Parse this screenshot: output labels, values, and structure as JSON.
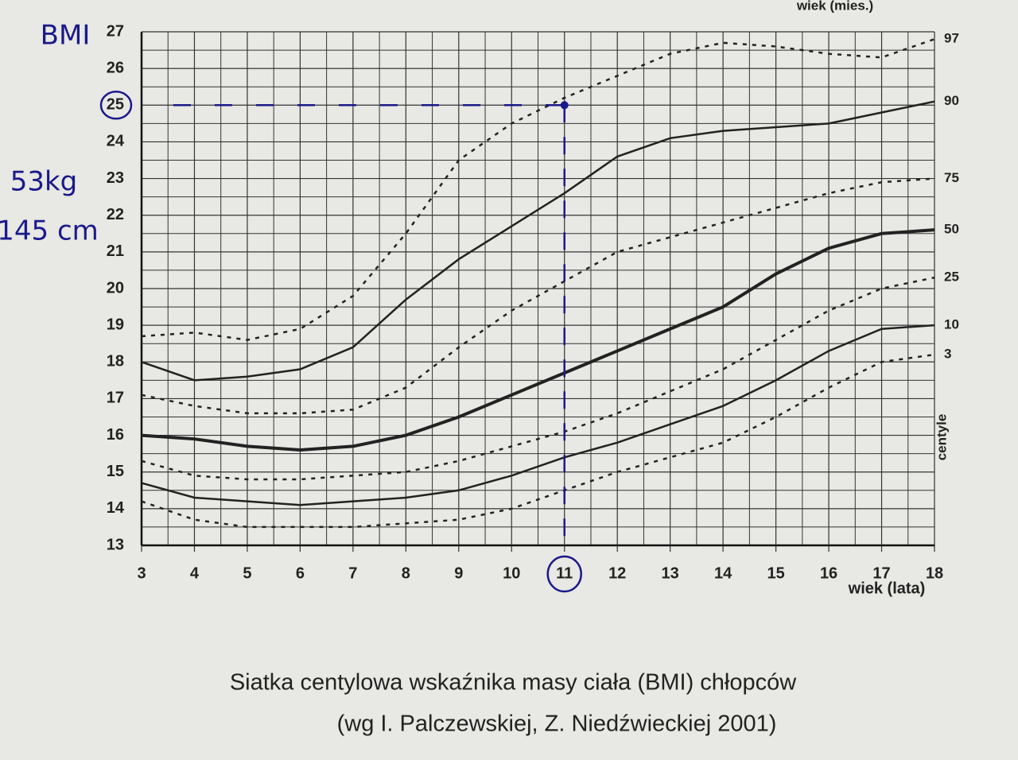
{
  "chart_data": {
    "type": "line",
    "title": "Siatka centylowa wskaźnika masy ciała (BMI) chłopców",
    "subtitle": "(wg I. Palczewskiej, Z. Niedźwieckiej 2001)",
    "xlabel": "wiek (lata)",
    "x2label": "wiek (mies.)",
    "legend_title": "centyle",
    "annotations": [
      "BMI",
      "53kg",
      "145 cm"
    ],
    "marker": {
      "x": 11,
      "y": 25,
      "color": "#1a1a8a"
    },
    "x": [
      3,
      4,
      5,
      6,
      7,
      8,
      9,
      10,
      11,
      12,
      13,
      14,
      15,
      16,
      17,
      18
    ],
    "xlim": [
      3,
      18
    ],
    "xticks": [
      3,
      4,
      5,
      6,
      7,
      8,
      9,
      10,
      11,
      12,
      13,
      14,
      15,
      16,
      17,
      18
    ],
    "ylim": [
      13,
      27
    ],
    "yticks": [
      13,
      14,
      15,
      16,
      17,
      18,
      19,
      20,
      21,
      22,
      23,
      24,
      25,
      26,
      27
    ],
    "grid": true,
    "minor_grid": true,
    "series": [
      {
        "name": "97",
        "color": "#222",
        "style": "dotted",
        "values": [
          18.7,
          18.8,
          18.6,
          18.9,
          19.8,
          21.5,
          23.5,
          24.5,
          25.2,
          25.8,
          26.4,
          26.7,
          26.6,
          26.4,
          26.3,
          26.8
        ]
      },
      {
        "name": "90",
        "color": "#222",
        "style": "solid",
        "values": [
          18.0,
          17.5,
          17.6,
          17.8,
          18.4,
          19.7,
          20.8,
          21.7,
          22.6,
          23.6,
          24.1,
          24.3,
          24.4,
          24.5,
          24.8,
          25.1
        ]
      },
      {
        "name": "75",
        "color": "#222",
        "style": "dotted",
        "values": [
          17.1,
          16.8,
          16.6,
          16.6,
          16.7,
          17.3,
          18.4,
          19.4,
          20.2,
          21.0,
          21.4,
          21.8,
          22.2,
          22.6,
          22.9,
          23.0
        ]
      },
      {
        "name": "50",
        "color": "#222",
        "style": "bold",
        "values": [
          16.0,
          15.9,
          15.7,
          15.6,
          15.7,
          16.0,
          16.5,
          17.1,
          17.7,
          18.3,
          18.9,
          19.5,
          20.4,
          21.1,
          21.5,
          21.6
        ]
      },
      {
        "name": "25",
        "color": "#222",
        "style": "dotted",
        "values": [
          15.3,
          14.9,
          14.8,
          14.8,
          14.9,
          15.0,
          15.3,
          15.7,
          16.1,
          16.6,
          17.2,
          17.8,
          18.6,
          19.4,
          20.0,
          20.3
        ]
      },
      {
        "name": "10",
        "color": "#222",
        "style": "solid",
        "values": [
          14.7,
          14.3,
          14.2,
          14.1,
          14.2,
          14.3,
          14.5,
          14.9,
          15.4,
          15.8,
          16.3,
          16.8,
          17.5,
          18.3,
          18.9,
          19.0
        ]
      },
      {
        "name": "3",
        "color": "#222",
        "style": "dotted",
        "values": [
          14.2,
          13.7,
          13.5,
          13.5,
          13.5,
          13.6,
          13.7,
          14.0,
          14.5,
          15.0,
          15.4,
          15.8,
          16.5,
          17.3,
          18.0,
          18.2
        ]
      }
    ]
  }
}
